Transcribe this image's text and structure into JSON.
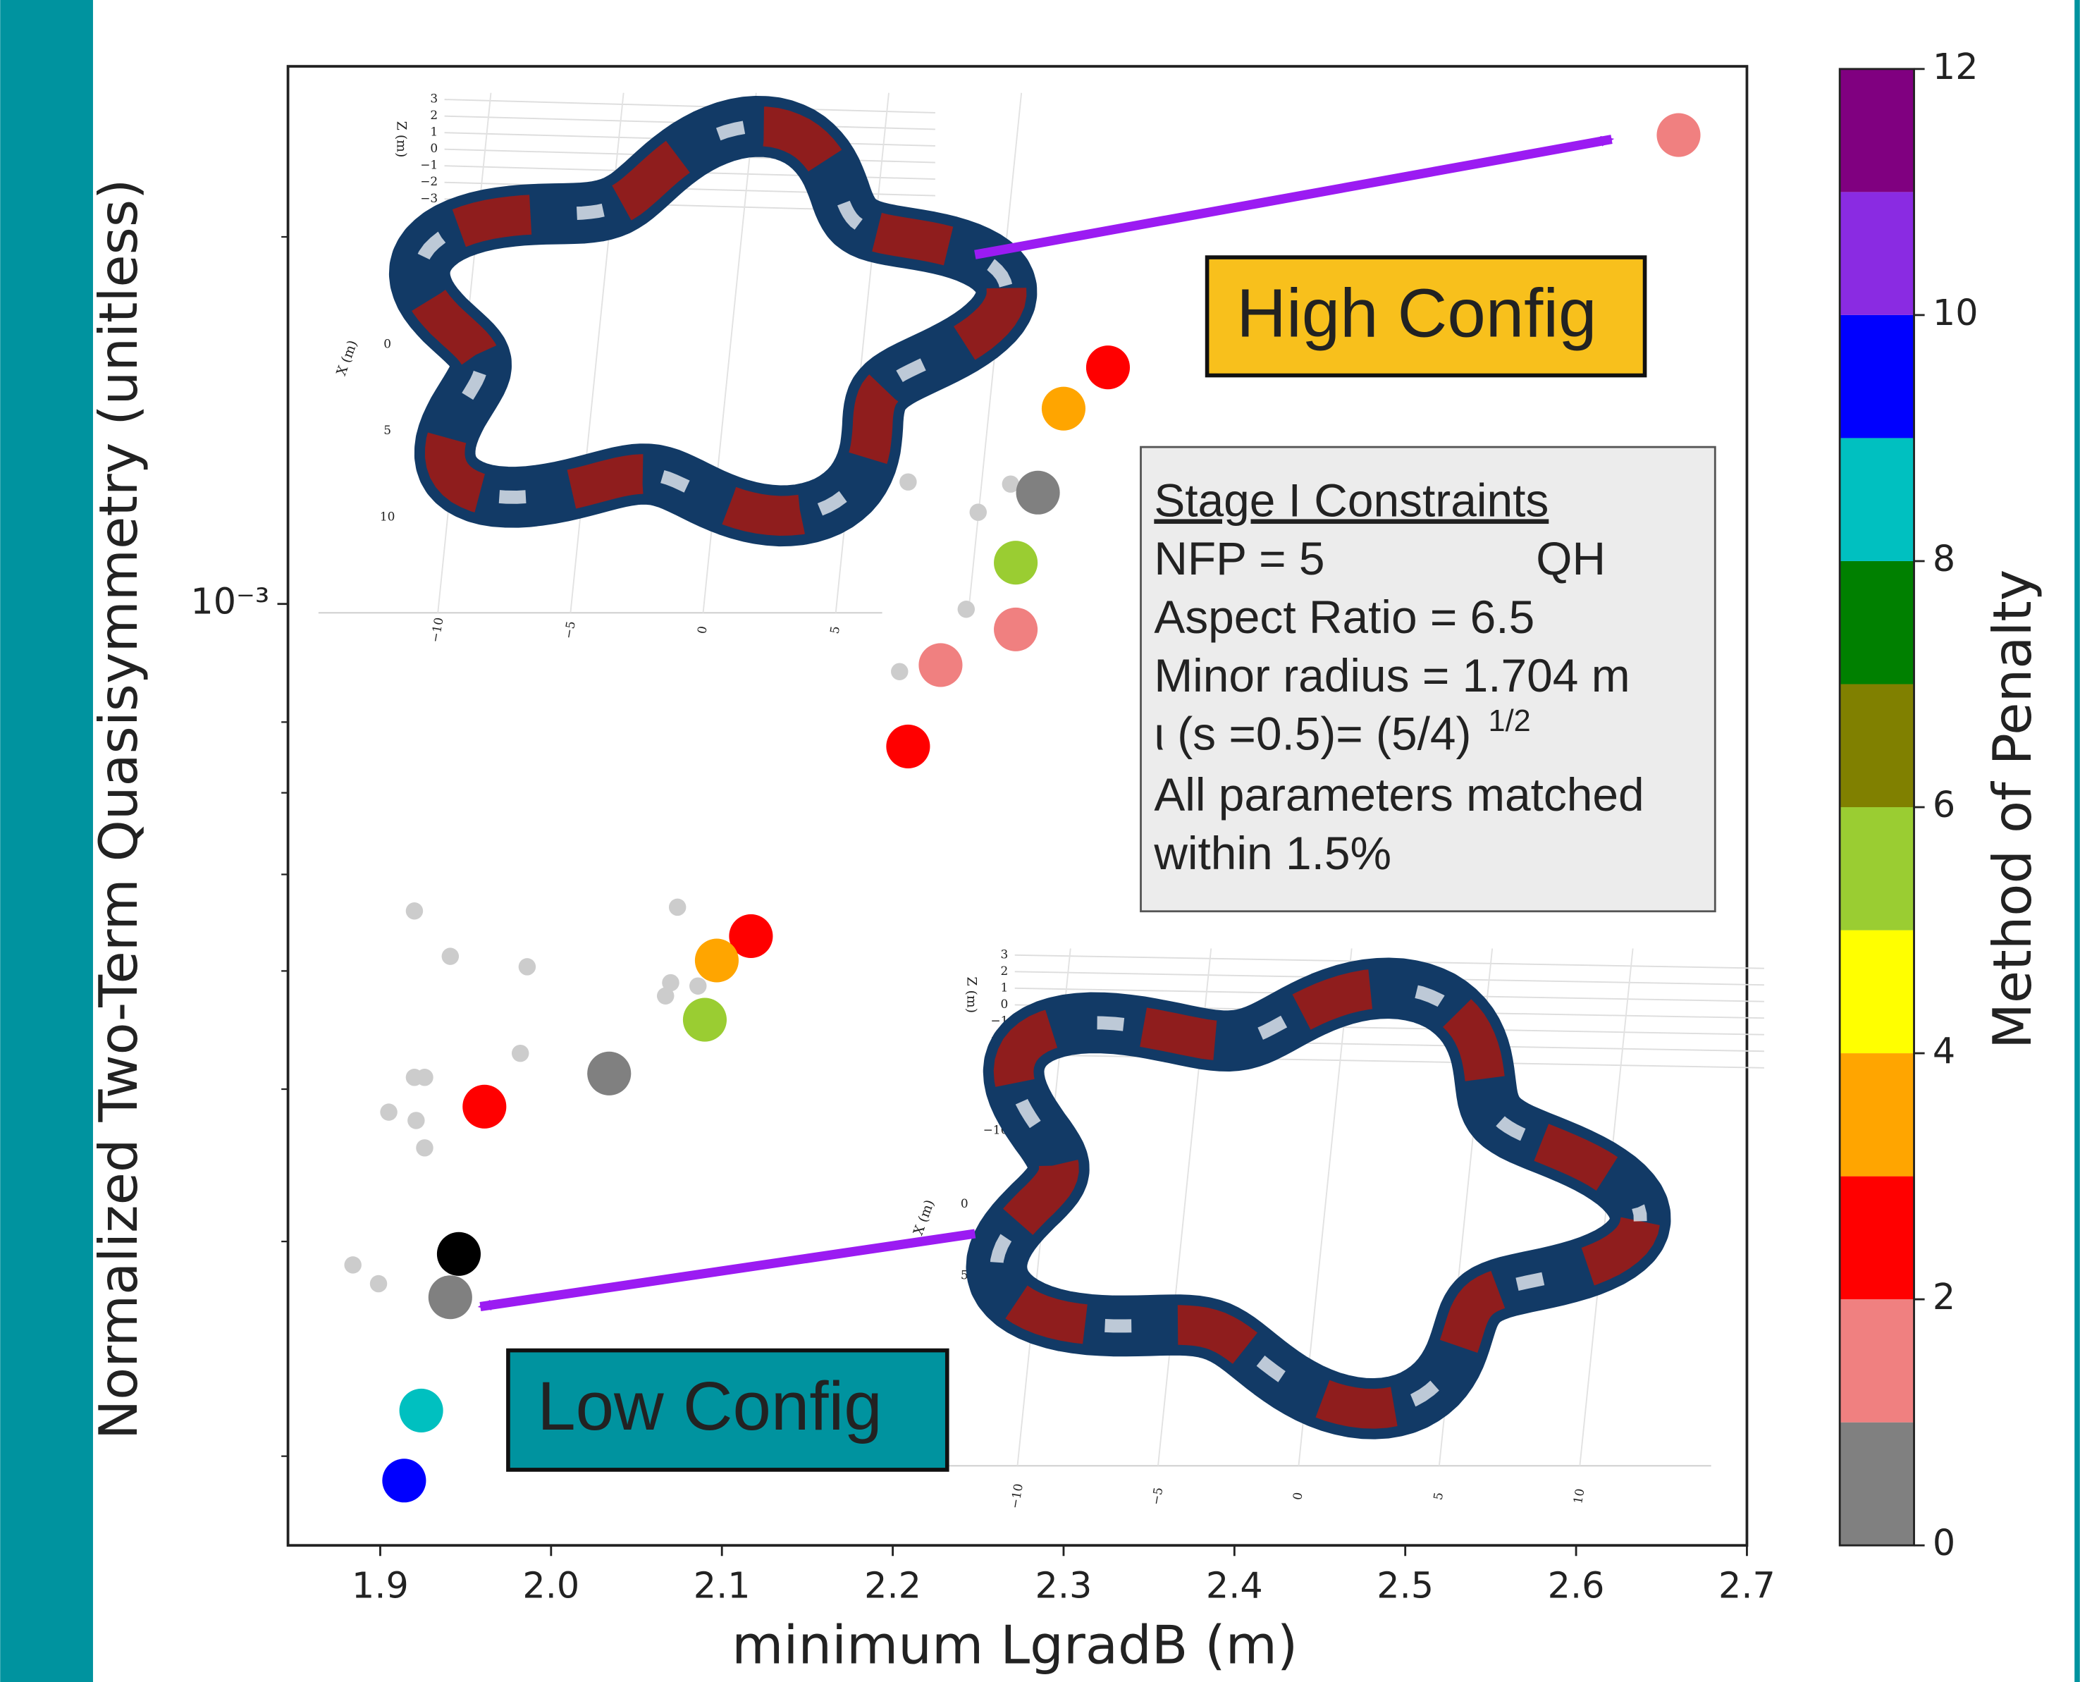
{
  "chart_data": {
    "type": "scatter",
    "xlabel": "minimum LgradB (m)",
    "ylabel": "Normalized Two-Term Quasisymmetry (unitless)",
    "xlim": [
      1.846,
      2.7
    ],
    "xticks": [
      1.9,
      {
        "value": 2,
        "label": "2.0"
      },
      2.1,
      2.2,
      2.3,
      2.4,
      2.5,
      2.6,
      2.7
    ],
    "ylog": true,
    "ylim": [
      0.000169,
      0.00276
    ],
    "yticks": [
      {
        "value": 0.001,
        "label": "10⁻³"
      }
    ],
    "yminorticks": [
      0.0002,
      0.0003,
      0.0004,
      0.0005,
      0.0006,
      0.0007,
      0.0008,
      0.002
    ],
    "points": {
      "x": [
        2.66,
        2.326,
        2.3,
        2.285,
        2.272,
        2.272,
        2.228,
        2.209,
        2.117,
        2.097,
        2.09,
        2.034,
        1.961,
        1.946,
        1.941,
        1.924,
        1.914
      ],
      "y": [
        0.002424,
        0.001563,
        0.001446,
        0.001234,
        0.001081,
        0.000953,
        0.000891,
        0.000764,
        0.000534,
        0.00051,
        0.000456,
        0.000412,
        0.000387,
        0.000293,
        0.00027,
        0.000218,
        0.000191
      ],
      "colors": [
        "#f08080",
        "#ff0000",
        "#ffa500",
        "#808080",
        "#9acd32",
        "#f08080",
        "#f08080",
        "#ff0000",
        "#ff0000",
        "#ffa500",
        "#9acd32",
        "#808080",
        "#ff0000",
        "#000000",
        "#808080",
        "#00c0c0",
        "#0000ff"
      ]
    },
    "faint_points": {
      "x": [
        2.209,
        2.25,
        2.269,
        2.243,
        2.204,
        1.92,
        1.941,
        1.986,
        2.074,
        2.07,
        2.067,
        2.086,
        1.982,
        1.92,
        1.926,
        1.905,
        1.921,
        1.926,
        1.884,
        1.899
      ],
      "y": [
        0.001259,
        0.001189,
        0.001254,
        0.00099,
        0.00088,
        0.00056,
        0.000514,
        0.000504,
        0.000564,
        0.000489,
        0.000477,
        0.000486,
        0.000428,
        0.000409,
        0.000409,
        0.000383,
        0.000377,
        0.000358,
        0.000287,
        0.000277
      ],
      "color": "#cccccc"
    },
    "colorbar": {
      "label": "Method of Penalty",
      "lim": [
        0,
        12
      ],
      "ticks": [
        0,
        2,
        4,
        6,
        8,
        10,
        12
      ],
      "colors": [
        "#808080",
        "#f08080",
        "#ff0000",
        "#ffa500",
        "#ffff00",
        "#9acd32",
        "#808000",
        "#008000",
        "#00c0c0",
        "#0000ff",
        "#8a2be2",
        "#800080"
      ]
    },
    "annotations": {
      "high": "High Config",
      "low": "Low Config",
      "constraints": {
        "heading": "Stage  I Constraints",
        "nfp": "NFP = 5",
        "qh": "QH",
        "aspect": "Aspect Ratio = 6.5",
        "minor": "Minor radius = 1.704 m",
        "iota": "ι (s =0.5)= (5/4)",
        "iota_exp": "1/2",
        "matched": "All parameters matched",
        "within": "within 1.5%"
      }
    },
    "insets": [
      {
        "z_label": "Z (m)",
        "x_label": "X (m)",
        "z_ticks": [
          "3",
          "2",
          "1",
          "0",
          "−1",
          "−2",
          "−3",
          "−10"
        ],
        "x_ticks": [
          "0",
          "5",
          "10"
        ],
        "bottom_ticks": [
          "−10",
          "−5",
          "0",
          "5"
        ]
      },
      {
        "z_label": "Z (m)",
        "x_label": "X (m)",
        "z_ticks": [
          "3",
          "2",
          "1",
          "0",
          "−1",
          "−2",
          "−3",
          "−10"
        ],
        "x_ticks": [
          "0",
          "5"
        ],
        "bottom_ticks": [
          "−10",
          "−5",
          "0",
          "5",
          "10"
        ]
      }
    ]
  }
}
